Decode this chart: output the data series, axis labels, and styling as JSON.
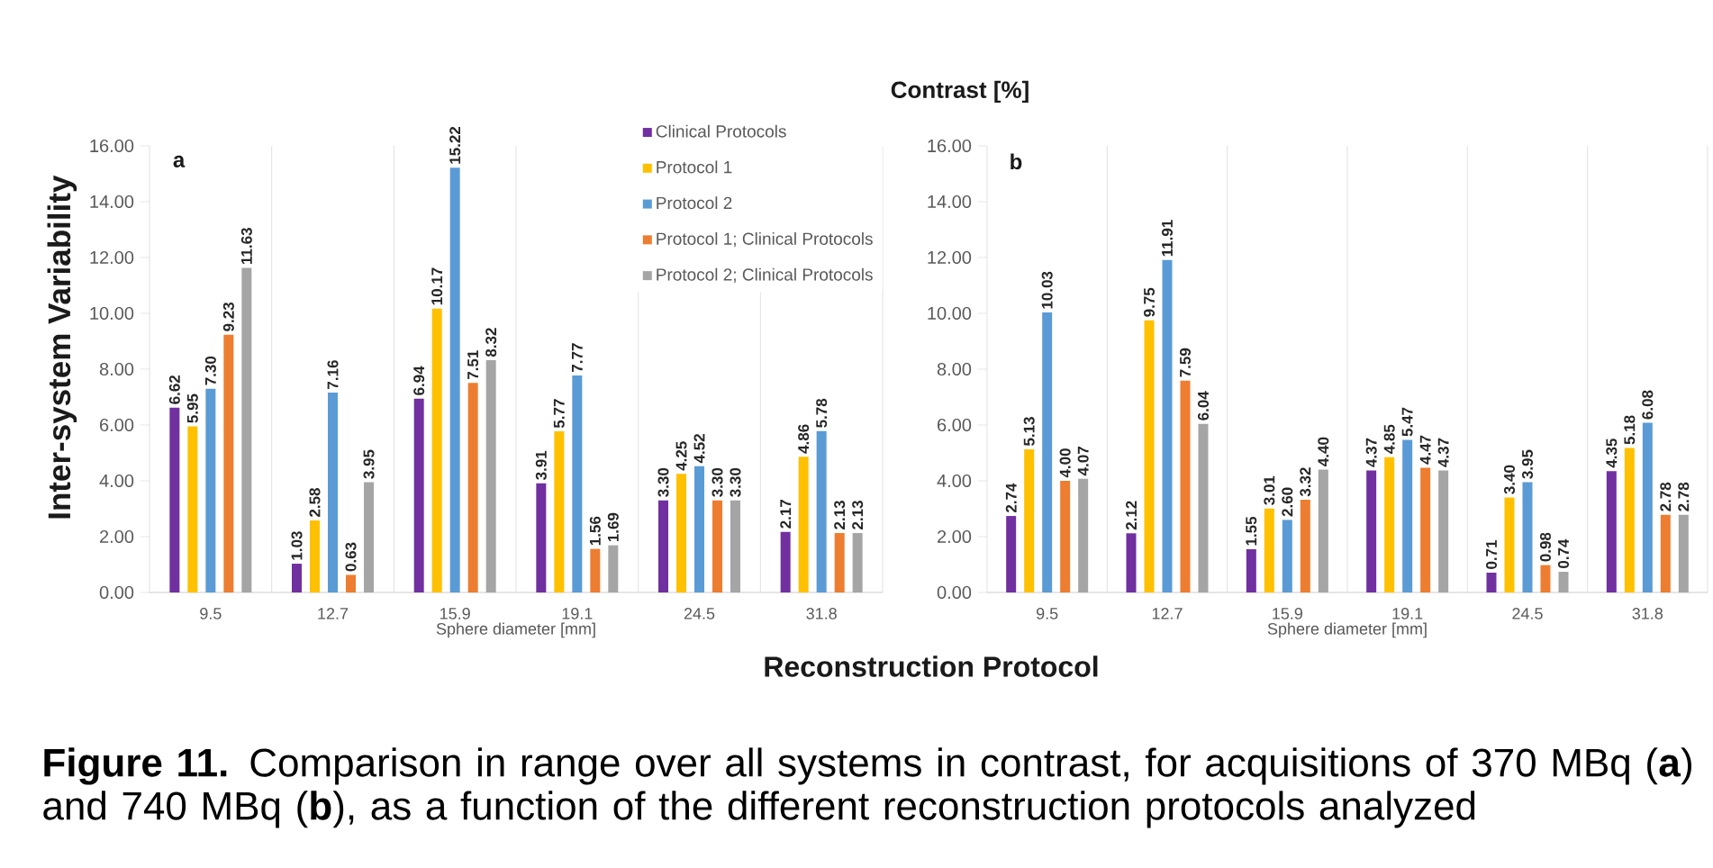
{
  "chart_data": [
    {
      "type": "bar",
      "title": "Contrast [%]",
      "xlabel": "Sphere diameter [mm]",
      "ylabel": "Inter-system Variability",
      "categories": [
        "9.5",
        "12.7",
        "15.9",
        "19.1",
        "24.5",
        "31.8"
      ],
      "series": [
        {
          "name": "Clinical Protocols",
          "color": "#7030a0",
          "values": [
            6.62,
            1.03,
            6.94,
            3.91,
            3.3,
            2.17
          ],
          "value_labels": [
            "6.62",
            "1.03",
            "6.94",
            "3.91",
            "3.30",
            "2.17"
          ]
        },
        {
          "name": "Protocol 1",
          "color": "#ffc000",
          "values": [
            5.95,
            2.58,
            10.17,
            5.77,
            4.25,
            4.86
          ],
          "value_labels": [
            "5.95",
            "2.58",
            "10.17",
            "5.77",
            "4.25",
            "4.86"
          ]
        },
        {
          "name": "Protocol 2",
          "color": "#5b9bd5",
          "values": [
            7.3,
            7.16,
            15.22,
            7.77,
            4.52,
            5.78
          ],
          "value_labels": [
            "7.30",
            "7.16",
            "15.22",
            "7.77",
            "4.52",
            "5.78"
          ]
        },
        {
          "name": "Protocol 1; Clinical Protocols",
          "color": "#ed7d31",
          "values": [
            9.23,
            0.63,
            7.51,
            1.56,
            3.3,
            2.13
          ],
          "value_labels": [
            "9.23",
            "0.63",
            "7.51",
            "1.56",
            "3.30",
            "2.13"
          ]
        },
        {
          "name": "Protocol 2; Clinical Protocols",
          "color": "#a5a5a5",
          "values": [
            11.63,
            3.95,
            8.32,
            1.69,
            3.3,
            2.13
          ],
          "value_labels": [
            "11.63",
            "3.95",
            "8.32",
            "1.69",
            "3.30",
            "2.13"
          ]
        }
      ],
      "ylim": [
        0,
        16
      ],
      "yticks": [
        {
          "value": 0,
          "label": "0.00"
        },
        {
          "value": 2,
          "label": "2.00"
        },
        {
          "value": 4,
          "label": "4.00"
        },
        {
          "value": 6,
          "label": "6.00"
        },
        {
          "value": 8,
          "label": "8.00"
        },
        {
          "value": 10,
          "label": "10.00"
        },
        {
          "value": 12,
          "label": "12.00"
        },
        {
          "value": 14,
          "label": "14.00"
        },
        {
          "value": 16,
          "label": "16.00"
        }
      ],
      "grid": "x",
      "legend": "top right",
      "annotations": [
        "a",
        "Reconstruction Protocol",
        "**Figure 11.**  Comparison in range over all systems in contrast, for acquisitions of 370 MBq (**a**) and 740 MBq (**b**), as a function of the different reconstruction protocols analyzed"
      ]
    },
    {
      "type": "bar",
      "xlabel": "Sphere diameter [mm]",
      "categories": [
        "9.5",
        "12.7",
        "15.9",
        "19.1",
        "24.5",
        "31.8"
      ],
      "series": [
        {
          "color": "#7030a0",
          "values": [
            2.74,
            2.12,
            1.55,
            4.37,
            0.71,
            4.35
          ],
          "value_labels": [
            "2.74",
            "2.12",
            "1.55",
            "4.37",
            "0.71",
            "4.35"
          ]
        },
        {
          "color": "#ffc000",
          "values": [
            5.13,
            9.75,
            3.01,
            4.85,
            3.4,
            5.18
          ],
          "value_labels": [
            "5.13",
            "9.75",
            "3.01",
            "4.85",
            "3.40",
            "5.18"
          ]
        },
        {
          "color": "#5b9bd5",
          "values": [
            10.03,
            11.91,
            2.6,
            5.47,
            3.95,
            6.08
          ],
          "value_labels": [
            "10.03",
            "11.91",
            "2.60",
            "5.47",
            "3.95",
            "6.08"
          ]
        },
        {
          "color": "#ed7d31",
          "values": [
            4.0,
            7.59,
            3.32,
            4.47,
            0.98,
            2.78
          ],
          "value_labels": [
            "4.00",
            "7.59",
            "3.32",
            "4.47",
            "0.98",
            "2.78"
          ]
        },
        {
          "color": "#a5a5a5",
          "values": [
            4.07,
            6.04,
            4.4,
            4.37,
            0.74,
            2.78
          ],
          "value_labels": [
            "4.07",
            "6.04",
            "4.40",
            "4.37",
            "0.74",
            "2.78"
          ]
        }
      ],
      "ylim": [
        0,
        16
      ],
      "yticks": [
        {
          "value": 0,
          "label": "0.00"
        },
        {
          "value": 2,
          "label": "2.00"
        },
        {
          "value": 4,
          "label": "4.00"
        },
        {
          "value": 6,
          "label": "6.00"
        },
        {
          "value": 8,
          "label": "8.00"
        },
        {
          "value": 10,
          "label": "10.00"
        },
        {
          "value": 12,
          "label": "12.00"
        },
        {
          "value": 14,
          "label": "14.00"
        },
        {
          "value": 16,
          "label": "16.00"
        }
      ],
      "grid": "x",
      "annotations": [
        "b"
      ]
    }
  ]
}
